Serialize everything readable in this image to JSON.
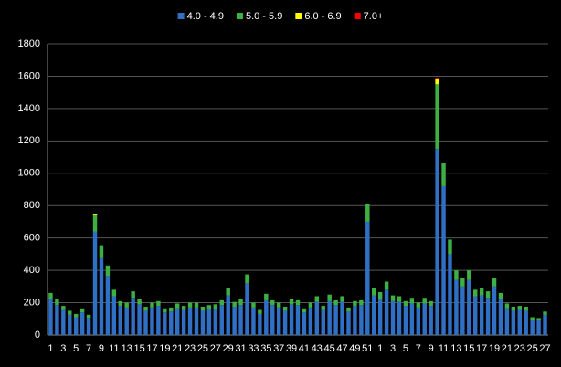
{
  "chart_data": {
    "type": "stacked_bar",
    "categories": [
      1,
      null,
      3,
      null,
      5,
      null,
      7,
      null,
      9,
      null,
      11,
      null,
      13,
      null,
      15,
      null,
      17,
      null,
      19,
      null,
      21,
      null,
      23,
      null,
      25,
      null,
      27,
      null,
      29,
      null,
      31,
      null,
      33,
      null,
      35,
      null,
      37,
      null,
      39,
      null,
      41,
      null,
      43,
      null,
      45,
      null,
      47,
      null,
      49,
      null,
      51,
      null,
      1,
      null,
      3,
      null,
      5,
      null,
      7,
      null,
      9,
      null,
      11,
      null,
      13,
      null,
      15,
      null,
      17,
      null,
      19,
      null,
      21,
      null,
      23,
      null,
      25,
      null,
      27
    ],
    "series": [
      {
        "name": "4.0 - 4.9",
        "color": "#2f6fc4",
        "values": [
          220,
          185,
          155,
          125,
          110,
          140,
          105,
          640,
          475,
          365,
          240,
          180,
          170,
          230,
          190,
          150,
          170,
          180,
          140,
          145,
          165,
          155,
          170,
          170,
          150,
          160,
          160,
          185,
          245,
          175,
          185,
          320,
          170,
          130,
          215,
          185,
          170,
          150,
          190,
          185,
          140,
          170,
          205,
          155,
          210,
          185,
          205,
          145,
          180,
          185,
          700,
          245,
          225,
          280,
          210,
          205,
          180,
          195,
          170,
          195,
          180,
          1150,
          920,
          500,
          340,
          300,
          340,
          240,
          245,
          230,
          300,
          220,
          165,
          150,
          155,
          150,
          95,
          90,
          125
        ]
      },
      {
        "name": "5.0 - 5.9",
        "color": "#3cb043",
        "values": [
          40,
          35,
          25,
          25,
          20,
          25,
          20,
          100,
          80,
          65,
          40,
          30,
          30,
          40,
          35,
          25,
          30,
          30,
          25,
          25,
          30,
          25,
          30,
          30,
          25,
          25,
          30,
          30,
          45,
          30,
          35,
          55,
          30,
          25,
          40,
          30,
          30,
          25,
          35,
          30,
          25,
          30,
          35,
          25,
          40,
          30,
          35,
          25,
          30,
          30,
          110,
          45,
          40,
          50,
          35,
          35,
          30,
          35,
          30,
          35,
          30,
          400,
          145,
          90,
          60,
          50,
          60,
          40,
          45,
          40,
          55,
          40,
          30,
          25,
          25,
          25,
          15,
          15,
          20
        ]
      },
      {
        "name": "6.0 - 6.9",
        "color": "#ffff00",
        "values": [
          0,
          0,
          0,
          0,
          0,
          0,
          0,
          10,
          0,
          0,
          0,
          0,
          0,
          0,
          0,
          0,
          0,
          0,
          0,
          0,
          0,
          0,
          0,
          0,
          0,
          0,
          0,
          0,
          0,
          0,
          0,
          0,
          0,
          0,
          0,
          0,
          0,
          0,
          0,
          0,
          0,
          0,
          0,
          0,
          0,
          0,
          0,
          0,
          0,
          0,
          0,
          0,
          0,
          0,
          0,
          0,
          0,
          0,
          0,
          0,
          0,
          35,
          0,
          0,
          0,
          0,
          0,
          0,
          0,
          0,
          0,
          0,
          0,
          0,
          0,
          0,
          0,
          0,
          0
        ]
      },
      {
        "name": "7.0+",
        "color": "#ff0000",
        "values": [
          0,
          0,
          0,
          0,
          0,
          0,
          0,
          0,
          0,
          0,
          0,
          0,
          0,
          0,
          0,
          0,
          0,
          0,
          0,
          0,
          0,
          0,
          0,
          0,
          0,
          0,
          0,
          0,
          0,
          0,
          0,
          0,
          0,
          0,
          0,
          0,
          0,
          0,
          0,
          0,
          0,
          0,
          0,
          0,
          0,
          0,
          0,
          0,
          0,
          0,
          0,
          0,
          0,
          0,
          0,
          0,
          0,
          0,
          0,
          0,
          0,
          5,
          0,
          0,
          0,
          0,
          0,
          0,
          0,
          0,
          0,
          0,
          0,
          0,
          0,
          0,
          0,
          0,
          0
        ]
      }
    ],
    "ylim": [
      0,
      1800
    ],
    "yticks": [
      0,
      200,
      400,
      600,
      800,
      1000,
      1200,
      1400,
      1600,
      1800
    ],
    "grid": true,
    "legend": "top"
  }
}
